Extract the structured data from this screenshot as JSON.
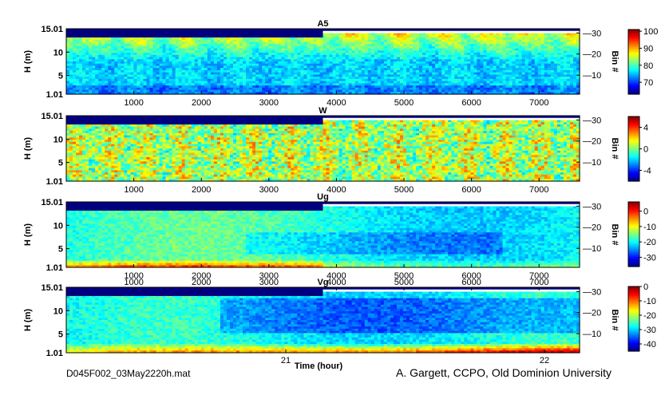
{
  "footer": {
    "filename": "D045F002_03May2220h.mat",
    "credit": "A. Gargett, CCPO, Old Dominion University"
  },
  "colormap": [
    "#00007f",
    "#0000ff",
    "#0080ff",
    "#00ffff",
    "#80ff80",
    "#ffff00",
    "#ff8000",
    "#ff0000",
    "#7f0000"
  ],
  "chart_data": [
    {
      "type": "heatmap",
      "title": "A5",
      "ylabel": "H (m)",
      "y_tick_labels": [
        "15.01",
        "10",
        "5",
        "1.01"
      ],
      "y_ticks": [
        15.01,
        10,
        5,
        1.01
      ],
      "ylim": [
        1.01,
        15.01
      ],
      "x_tick_labels": [
        "1000",
        "2000",
        "3000",
        "4000",
        "5000",
        "6000",
        "7000"
      ],
      "x_ticks": [
        1000,
        2000,
        3000,
        4000,
        5000,
        6000,
        7000
      ],
      "xlim": [
        0,
        7600
      ],
      "right_ylabel": "Bin #",
      "right_tick_labels": [
        "30",
        "20",
        "10"
      ],
      "right_ticks": [
        30,
        20,
        10
      ],
      "bin_range": [
        1,
        32
      ],
      "colorbar_tick_labels": [
        "100",
        "90",
        "80",
        "70"
      ],
      "colorbar_ticks": [
        100,
        90,
        80,
        70
      ],
      "clim": [
        63,
        101
      ]
    },
    {
      "type": "heatmap",
      "title": "W",
      "ylabel": "H (m)",
      "y_tick_labels": [
        "15.01",
        "10",
        "5",
        "1.01"
      ],
      "y_ticks": [
        15.01,
        10,
        5,
        1.01
      ],
      "ylim": [
        1.01,
        15.01
      ],
      "x_tick_labels": [
        "1000",
        "2000",
        "3000",
        "4000",
        "5000",
        "6000",
        "7000"
      ],
      "x_ticks": [
        1000,
        2000,
        3000,
        4000,
        5000,
        6000,
        7000
      ],
      "xlim": [
        0,
        7600
      ],
      "right_ylabel": "Bin #",
      "right_tick_labels": [
        "30",
        "20",
        "10"
      ],
      "right_ticks": [
        30,
        20,
        10
      ],
      "bin_range": [
        1,
        32
      ],
      "colorbar_tick_labels": [
        "4",
        "0",
        "-4"
      ],
      "colorbar_ticks": [
        4,
        0,
        -4
      ],
      "clim": [
        -6,
        6
      ]
    },
    {
      "type": "heatmap",
      "title": "Ug",
      "ylabel": "H (m)",
      "y_tick_labels": [
        "15.01",
        "10",
        "5",
        "1.01"
      ],
      "y_ticks": [
        15.01,
        10,
        5,
        1.01
      ],
      "ylim": [
        1.01,
        15.01
      ],
      "x_tick_labels": [
        "1000",
        "2000",
        "3000",
        "4000",
        "5000",
        "6000",
        "7000"
      ],
      "x_ticks": [
        1000,
        2000,
        3000,
        4000,
        5000,
        6000,
        7000
      ],
      "xlim": [
        0,
        7600
      ],
      "right_ylabel": "Bin #",
      "right_tick_labels": [
        "30",
        "20",
        "10"
      ],
      "right_ticks": [
        30,
        20,
        10
      ],
      "bin_range": [
        1,
        32
      ],
      "colorbar_tick_labels": [
        "0",
        "-10",
        "-20",
        "-30"
      ],
      "colorbar_ticks": [
        0,
        -10,
        -20,
        -30
      ],
      "clim": [
        -36,
        6
      ]
    },
    {
      "type": "heatmap",
      "title": "Vg",
      "ylabel": "H (m)",
      "y_tick_labels": [
        "15.01",
        "10",
        "5",
        "1.01"
      ],
      "y_ticks": [
        15.01,
        10,
        5,
        1.01
      ],
      "ylim": [
        1.01,
        15.01
      ],
      "x_tick_labels": [
        "1000",
        "2000",
        "3000",
        "4000",
        "5000",
        "6000",
        "7000"
      ],
      "x_ticks": [
        1000,
        2000,
        3000,
        4000,
        5000,
        6000,
        7000
      ],
      "xlim": [
        0,
        7600
      ],
      "bottom_tick_labels": [
        "21",
        "22"
      ],
      "bottom_ticks": [
        21,
        22
      ],
      "xlabel": "Time (hour)",
      "right_ylabel": "Bin #",
      "right_tick_labels": [
        "30",
        "20",
        "10"
      ],
      "right_ticks": [
        30,
        20,
        10
      ],
      "bin_range": [
        1,
        32
      ],
      "colorbar_tick_labels": [
        "0",
        "-10",
        "-20",
        "-30",
        "-40"
      ],
      "colorbar_ticks": [
        0,
        -10,
        -20,
        -30,
        -40
      ],
      "clim": [
        -45,
        0
      ]
    }
  ]
}
